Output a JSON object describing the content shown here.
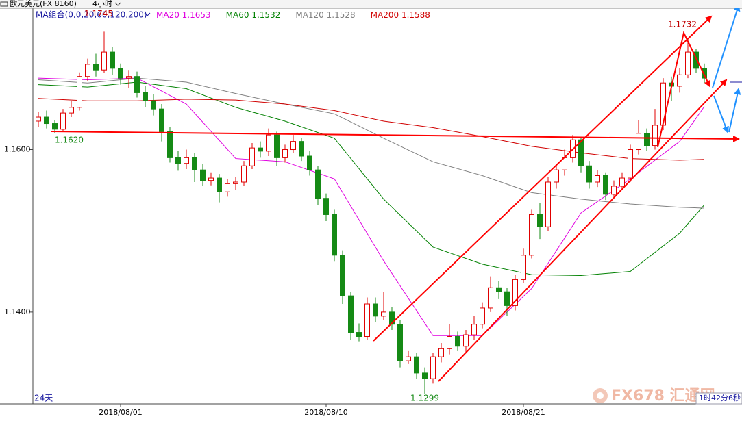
{
  "chart_data": {
    "type": "candlestick",
    "symbol": "欧元美元(FX 8160)",
    "period": "4小时",
    "legend_group": "MA组合(0,0,20,60,120,200)",
    "range_label": "24天",
    "timer": "1时42分6秒",
    "watermark": "FX678 汇通网",
    "up_color": "#e00000",
    "down_color": "#158a15",
    "ylim": [
      1.1287,
      1.1774
    ],
    "yticks": [
      {
        "value": 1.16,
        "label": "1.1600"
      },
      {
        "value": 1.14,
        "label": "1.1400"
      }
    ],
    "categories": [
      null,
      null,
      null,
      null,
      null,
      null,
      null,
      null,
      null,
      null,
      "2018/08/01",
      null,
      null,
      null,
      null,
      null,
      null,
      null,
      null,
      null,
      null,
      null,
      null,
      null,
      null,
      null,
      null,
      null,
      null,
      null,
      null,
      null,
      null,
      null,
      null,
      "2018/08/10",
      null,
      null,
      null,
      null,
      null,
      null,
      null,
      null,
      null,
      null,
      null,
      null,
      null,
      null,
      null,
      null,
      null,
      null,
      null,
      null,
      null,
      null,
      null,
      "2018/08/21",
      null,
      null,
      null,
      null,
      null,
      null,
      null,
      null,
      null,
      null,
      null,
      null,
      null,
      null,
      null,
      null,
      null,
      null,
      null,
      null,
      null,
      null
    ],
    "open": [
      1.1635,
      1.164,
      1.1632,
      1.1625,
      1.1645,
      1.1652,
      1.169,
      1.1705,
      1.1698,
      1.172,
      1.17,
      1.1688,
      1.169,
      1.167,
      1.166,
      1.165,
      1.1622,
      1.159,
      1.1583,
      1.159,
      1.1575,
      1.1562,
      1.1565,
      1.1548,
      1.1558,
      1.156,
      1.158,
      1.1602,
      1.1598,
      1.1618,
      1.159,
      1.16,
      1.161,
      1.1592,
      1.1575,
      1.154,
      1.152,
      1.147,
      1.142,
      1.1375,
      1.137,
      1.141,
      1.1395,
      1.14,
      1.1385,
      1.134,
      1.1345,
      1.1325,
      1.1318,
      1.1345,
      1.1355,
      1.137,
      1.1358,
      1.1372,
      1.1385,
      1.1405,
      1.143,
      1.1425,
      1.1408,
      1.144,
      1.147,
      1.152,
      1.1505,
      1.156,
      1.1575,
      1.159,
      1.1612,
      1.158,
      1.156,
      1.1568,
      1.1545,
      1.1555,
      1.1565,
      1.16,
      1.162,
      1.1605,
      1.163,
      1.1682,
      1.1678,
      1.1692,
      1.172,
      1.17
    ],
    "high": [
      1.1646,
      1.1648,
      1.1636,
      1.165,
      1.166,
      1.1695,
      1.1712,
      1.1718,
      1.1745,
      1.1726,
      1.1706,
      1.1698,
      1.1696,
      1.1678,
      1.1668,
      1.1656,
      1.1628,
      1.1598,
      1.16,
      1.1596,
      1.1582,
      1.1572,
      1.157,
      1.1564,
      1.1566,
      1.1586,
      1.1608,
      1.161,
      1.1626,
      1.1622,
      1.1606,
      1.1618,
      1.1614,
      1.1598,
      1.158,
      1.1546,
      1.1526,
      1.1476,
      1.1425,
      1.1386,
      1.1418,
      1.1418,
      1.1425,
      1.1406,
      1.139,
      1.1352,
      1.135,
      1.1332,
      1.135,
      1.1362,
      1.1385,
      1.1376,
      1.1378,
      1.1395,
      1.1412,
      1.1444,
      1.1438,
      1.143,
      1.1446,
      1.1478,
      1.1526,
      1.1534,
      1.1566,
      1.1582,
      1.16,
      1.1618,
      1.1616,
      1.1586,
      1.1575,
      1.1572,
      1.1562,
      1.1572,
      1.1606,
      1.1636,
      1.1626,
      1.165,
      1.1688,
      1.169,
      1.17,
      1.1732,
      1.1724,
      1.1706
    ],
    "low": [
      1.1628,
      1.1626,
      1.162,
      1.1622,
      1.164,
      1.1648,
      1.1684,
      1.169,
      1.1694,
      1.1692,
      1.168,
      1.1676,
      1.1664,
      1.1652,
      1.1642,
      1.161,
      1.1584,
      1.1574,
      1.1576,
      1.156,
      1.1555,
      1.1556,
      1.1535,
      1.1542,
      1.155,
      1.1555,
      1.1576,
      1.159,
      1.1592,
      1.158,
      1.1584,
      1.1596,
      1.1586,
      1.1568,
      1.1532,
      1.1512,
      1.1462,
      1.141,
      1.1366,
      1.1364,
      1.1366,
      1.1388,
      1.139,
      1.1378,
      1.1332,
      1.1336,
      1.1318,
      1.1299,
      1.1312,
      1.1338,
      1.1348,
      1.1352,
      1.135,
      1.1366,
      1.138,
      1.14,
      1.1416,
      1.1395,
      1.1402,
      1.1436,
      1.1466,
      1.149,
      1.15,
      1.1552,
      1.1568,
      1.1584,
      1.1572,
      1.1552,
      1.1554,
      1.1538,
      1.154,
      1.155,
      1.156,
      1.1594,
      1.1598,
      1.16,
      1.1624,
      1.166,
      1.167,
      1.1688,
      1.1694,
      1.1682
    ],
    "close": [
      1.164,
      1.1632,
      1.1625,
      1.1645,
      1.1652,
      1.169,
      1.1705,
      1.1698,
      1.172,
      1.17,
      1.1688,
      1.169,
      1.167,
      1.166,
      1.165,
      1.1622,
      1.159,
      1.1583,
      1.159,
      1.1575,
      1.1562,
      1.1565,
      1.1548,
      1.1558,
      1.156,
      1.158,
      1.1602,
      1.1598,
      1.1618,
      1.159,
      1.16,
      1.161,
      1.1592,
      1.1575,
      1.154,
      1.152,
      1.147,
      1.142,
      1.1375,
      1.137,
      1.141,
      1.1395,
      1.14,
      1.1385,
      1.134,
      1.1345,
      1.1325,
      1.1318,
      1.1345,
      1.1355,
      1.137,
      1.1358,
      1.1372,
      1.1385,
      1.1405,
      1.143,
      1.1425,
      1.1408,
      1.144,
      1.147,
      1.152,
      1.1505,
      1.156,
      1.1575,
      1.159,
      1.1612,
      1.158,
      1.156,
      1.1568,
      1.1545,
      1.1555,
      1.1565,
      1.16,
      1.162,
      1.1605,
      1.163,
      1.1682,
      1.1678,
      1.1692,
      1.172,
      1.17,
      1.1688
    ],
    "high_labels": [
      null,
      null,
      null,
      null,
      null,
      null,
      null,
      null,
      "1.1745",
      null,
      null,
      null,
      null,
      null,
      null,
      null,
      null,
      null,
      null,
      null,
      null,
      null,
      null,
      null,
      null,
      null,
      null,
      null,
      null,
      null,
      null,
      null,
      null,
      null,
      null,
      null,
      null,
      null,
      null,
      null,
      null,
      null,
      null,
      null,
      null,
      null,
      null,
      null,
      null,
      null,
      null,
      null,
      null,
      null,
      null,
      null,
      null,
      null,
      null,
      null,
      null,
      null,
      null,
      null,
      null,
      null,
      null,
      null,
      null,
      null,
      null,
      null,
      null,
      null,
      null,
      null,
      null,
      null,
      null,
      "1.1732",
      null,
      null
    ],
    "low_labels": [
      null,
      null,
      "1.1620",
      null,
      null,
      null,
      null,
      null,
      null,
      null,
      null,
      null,
      null,
      null,
      null,
      null,
      null,
      null,
      null,
      null,
      null,
      null,
      null,
      null,
      null,
      null,
      null,
      null,
      null,
      null,
      null,
      null,
      null,
      null,
      null,
      null,
      null,
      null,
      null,
      null,
      null,
      null,
      null,
      null,
      null,
      null,
      null,
      "1.1299",
      null,
      null,
      null,
      null,
      null,
      null,
      null,
      null,
      null,
      null,
      null,
      null,
      null,
      null,
      null,
      null,
      null,
      null,
      null,
      null,
      null,
      null,
      null,
      null,
      null,
      null,
      null,
      null,
      null,
      null,
      null,
      null,
      null,
      null
    ],
    "series": [
      {
        "name": "MA20",
        "color": "#e000e0",
        "last_value": 1.1653,
        "x": [
          0,
          6,
          12,
          18,
          24,
          30,
          36,
          42,
          48,
          54,
          60,
          66,
          72,
          78,
          81
        ],
        "values": [
          1.1688,
          1.1686,
          1.1688,
          1.1656,
          1.1589,
          1.1585,
          1.1564,
          1.1463,
          1.1371,
          1.1371,
          1.1429,
          1.1522,
          1.1564,
          1.161,
          1.1653
        ]
      },
      {
        "name": "MA60",
        "color": "#008000",
        "last_value": 1.1532,
        "x": [
          0,
          6,
          12,
          18,
          24,
          30,
          36,
          42,
          48,
          54,
          60,
          66,
          72,
          78,
          81
        ],
        "values": [
          1.168,
          1.1677,
          1.1683,
          1.1675,
          1.1652,
          1.1635,
          1.1614,
          1.1539,
          1.148,
          1.1459,
          1.1446,
          1.1445,
          1.145,
          1.1497,
          1.1532
        ]
      },
      {
        "name": "MA120",
        "color": "#808080",
        "last_value": 1.1528,
        "x": [
          0,
          6,
          12,
          18,
          24,
          30,
          36,
          42,
          48,
          54,
          60,
          66,
          72,
          78,
          81
        ],
        "values": [
          1.1686,
          1.1682,
          1.1688,
          1.1683,
          1.1669,
          1.1656,
          1.1644,
          1.1614,
          1.1585,
          1.1568,
          1.1547,
          1.1539,
          1.1533,
          1.1529,
          1.1528
        ]
      },
      {
        "name": "MA200",
        "color": "#d00000",
        "last_value": 1.1588,
        "x": [
          0,
          6,
          12,
          18,
          24,
          30,
          36,
          42,
          48,
          54,
          60,
          66,
          72,
          78,
          81
        ],
        "values": [
          1.1663,
          1.166,
          1.166,
          1.1662,
          1.1661,
          1.1656,
          1.1648,
          1.1635,
          1.1627,
          1.1616,
          1.1604,
          1.1596,
          1.1589,
          1.1587,
          1.1588
        ]
      }
    ]
  }
}
